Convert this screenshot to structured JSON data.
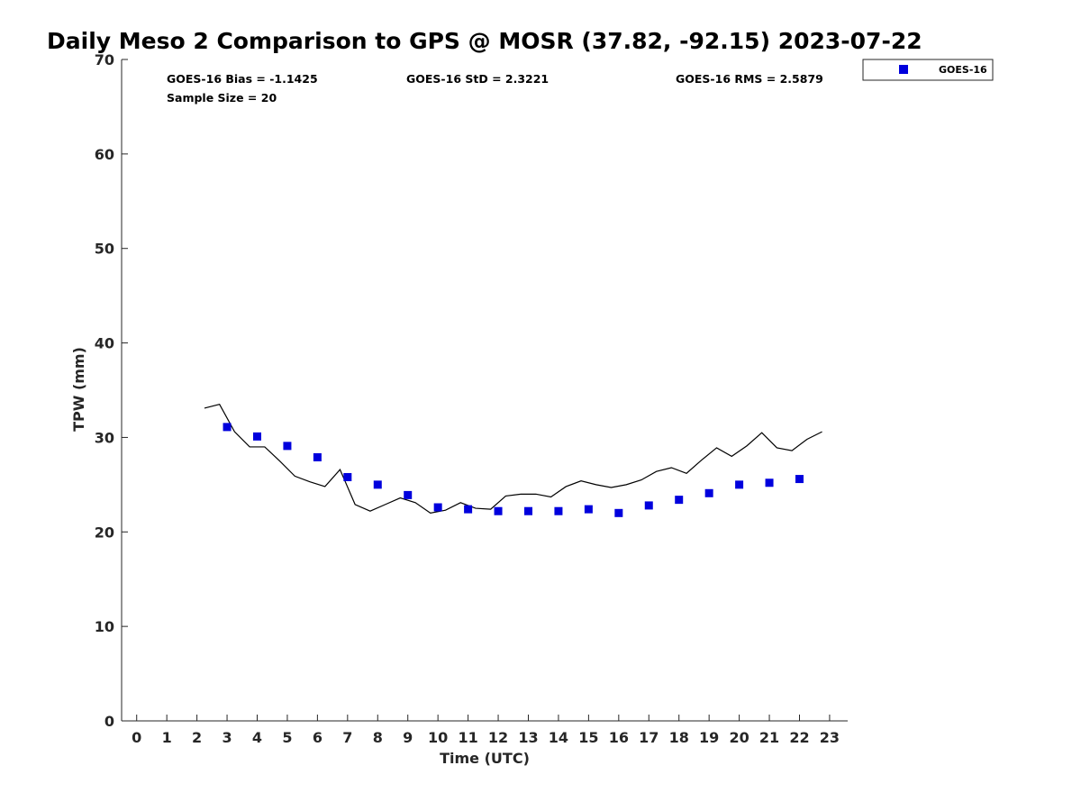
{
  "chart_data": {
    "type": "scatter",
    "title": "Daily Meso 2 Comparison to GPS @ MOSR (37.82, -92.15) 2023-07-22",
    "xlabel": "Time (UTC)",
    "ylabel": "TPW (mm)",
    "xlim": [
      -0.5,
      23.6
    ],
    "ylim": [
      0,
      70
    ],
    "x_ticks": [
      0,
      1,
      2,
      3,
      4,
      5,
      6,
      7,
      8,
      9,
      10,
      11,
      12,
      13,
      14,
      15,
      16,
      17,
      18,
      19,
      20,
      21,
      22,
      23
    ],
    "y_ticks": [
      0,
      10,
      20,
      30,
      40,
      50,
      60,
      70
    ],
    "grid": false,
    "legend_position": "top-right",
    "stats": [
      {
        "label": "GOES-16 Bias = -1.1425"
      },
      {
        "label": "GOES-16 StD = 2.3221"
      },
      {
        "label": "GOES-16 RMS = 2.5879"
      },
      {
        "label": "Sample Size = 20"
      }
    ],
    "series": [
      {
        "name": "GOES-16",
        "kind": "points",
        "color": "#0000dd",
        "x": [
          3,
          4,
          5,
          6,
          7,
          8,
          9,
          10,
          11,
          12,
          13,
          14,
          15,
          16,
          17,
          18,
          19,
          20,
          21,
          22
        ],
        "y": [
          31.1,
          30.1,
          29.1,
          27.9,
          25.8,
          25.0,
          23.9,
          22.6,
          22.4,
          22.2,
          22.2,
          22.2,
          22.4,
          22.0,
          22.8,
          23.4,
          24.1,
          25.0,
          25.2,
          25.6
        ]
      },
      {
        "kind": "line",
        "color": "#000000",
        "x": [
          2.25,
          2.75,
          3.25,
          3.75,
          4.25,
          4.75,
          5.25,
          5.75,
          6.25,
          6.75,
          7.25,
          7.75,
          8.25,
          8.75,
          9.25,
          9.75,
          10.25,
          10.75,
          11.25,
          11.75,
          12.25,
          12.75,
          13.25,
          13.75,
          14.25,
          14.75,
          15.25,
          15.75,
          16.25,
          16.75,
          17.25,
          17.75,
          18.25,
          18.75,
          19.25,
          19.75,
          20.25,
          20.75,
          21.25,
          21.75,
          22.25,
          22.75
        ],
        "y": [
          33.1,
          33.5,
          30.6,
          29.0,
          29.0,
          27.5,
          25.9,
          25.3,
          24.8,
          26.6,
          22.9,
          22.2,
          22.9,
          23.6,
          23.1,
          22.0,
          22.3,
          23.1,
          22.5,
          22.4,
          23.8,
          24.0,
          24.0,
          23.7,
          24.8,
          25.4,
          25.0,
          24.7,
          25.0,
          25.5,
          26.4,
          26.8,
          26.2,
          27.6,
          28.9,
          28.0,
          29.1,
          30.5,
          28.9,
          28.6,
          29.8,
          30.6
        ]
      }
    ]
  }
}
